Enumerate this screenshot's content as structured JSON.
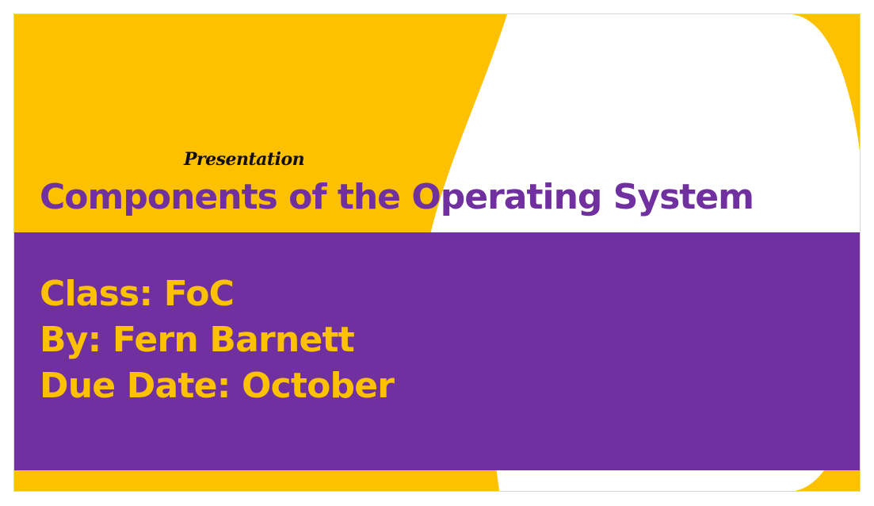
{
  "slide": {
    "kicker": "Presentation",
    "title": "Components of the Operating System",
    "details": [
      "Class: FoC",
      "By: Fern Barnett",
      "Due Date: October"
    ]
  },
  "colors": {
    "accent_yellow": "#FDC100",
    "accent_purple": "#7030A0",
    "white": "#FFFFFF",
    "kicker_text": "#111111"
  }
}
